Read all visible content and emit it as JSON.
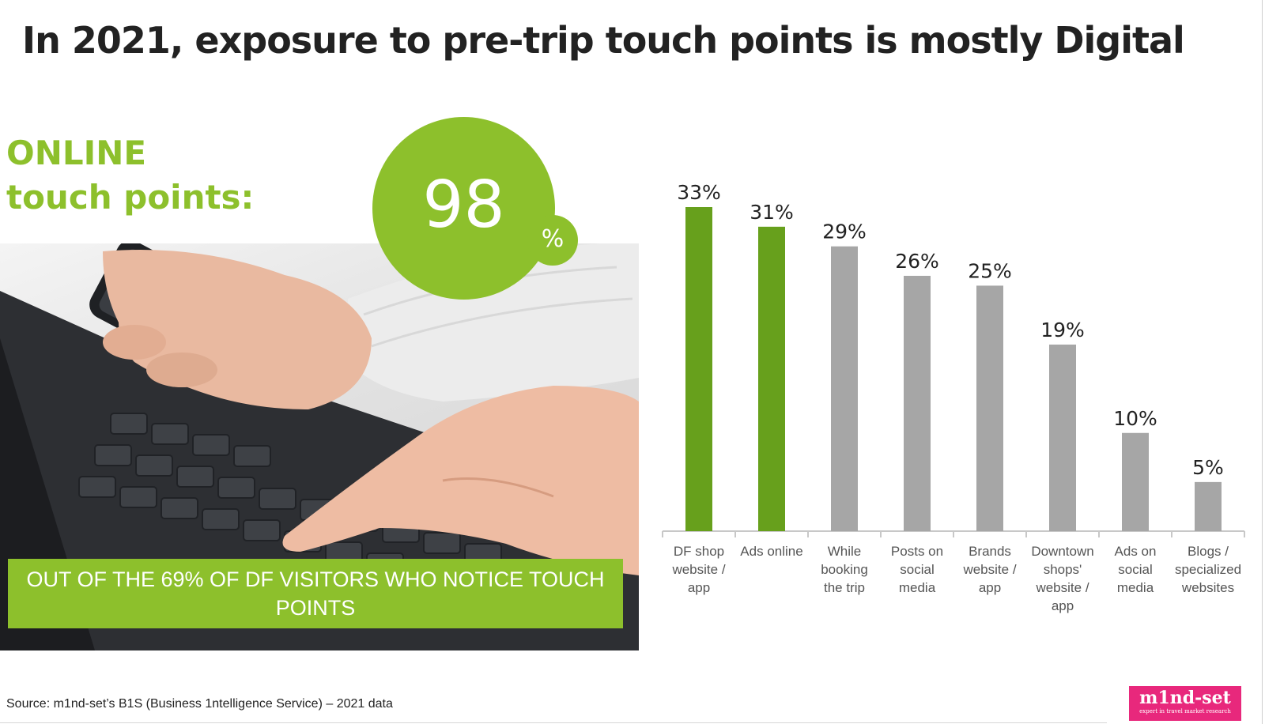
{
  "title": "In 2021, exposure to pre-trip touch points is mostly Digital",
  "online_label": {
    "line1": "ONLINE",
    "line2": "touch points:"
  },
  "highlight": {
    "value": "98",
    "unit": "%"
  },
  "banner_text": "OUT OF THE 69% OF DF VISITORS WHO NOTICE TOUCH POINTS",
  "source": "Source: m1nd-set’s B1S (Business 1ntelligence Service) – 2021 data",
  "logo": {
    "name": "m1nd-set",
    "tagline": "expert in travel market research"
  },
  "colors": {
    "accent_green": "#8dc02c",
    "bar_dark_green": "#67a01c",
    "bar_grey": "#a6a6a6",
    "logo_pink": "#e8287c"
  },
  "chart_data": {
    "type": "bar",
    "categories": [
      [
        "DF shop",
        "website /",
        "app"
      ],
      [
        "Ads online"
      ],
      [
        "While",
        "booking",
        "the trip"
      ],
      [
        "Posts on",
        "social",
        "media"
      ],
      [
        "Brands",
        "website /",
        "app"
      ],
      [
        "Downtown",
        "shops'",
        "website /",
        "app"
      ],
      [
        "Ads on",
        "social",
        "media"
      ],
      [
        "Blogs /",
        "specialized",
        "websites"
      ]
    ],
    "values": [
      33,
      31,
      29,
      26,
      25,
      19,
      10,
      5
    ],
    "value_labels": [
      "33%",
      "31%",
      "29%",
      "26%",
      "25%",
      "19%",
      "10%",
      "5%"
    ],
    "highlighted": [
      true,
      true,
      false,
      false,
      false,
      false,
      false,
      false
    ],
    "ylim": [
      0,
      33
    ],
    "grid": false,
    "legend": "none"
  }
}
